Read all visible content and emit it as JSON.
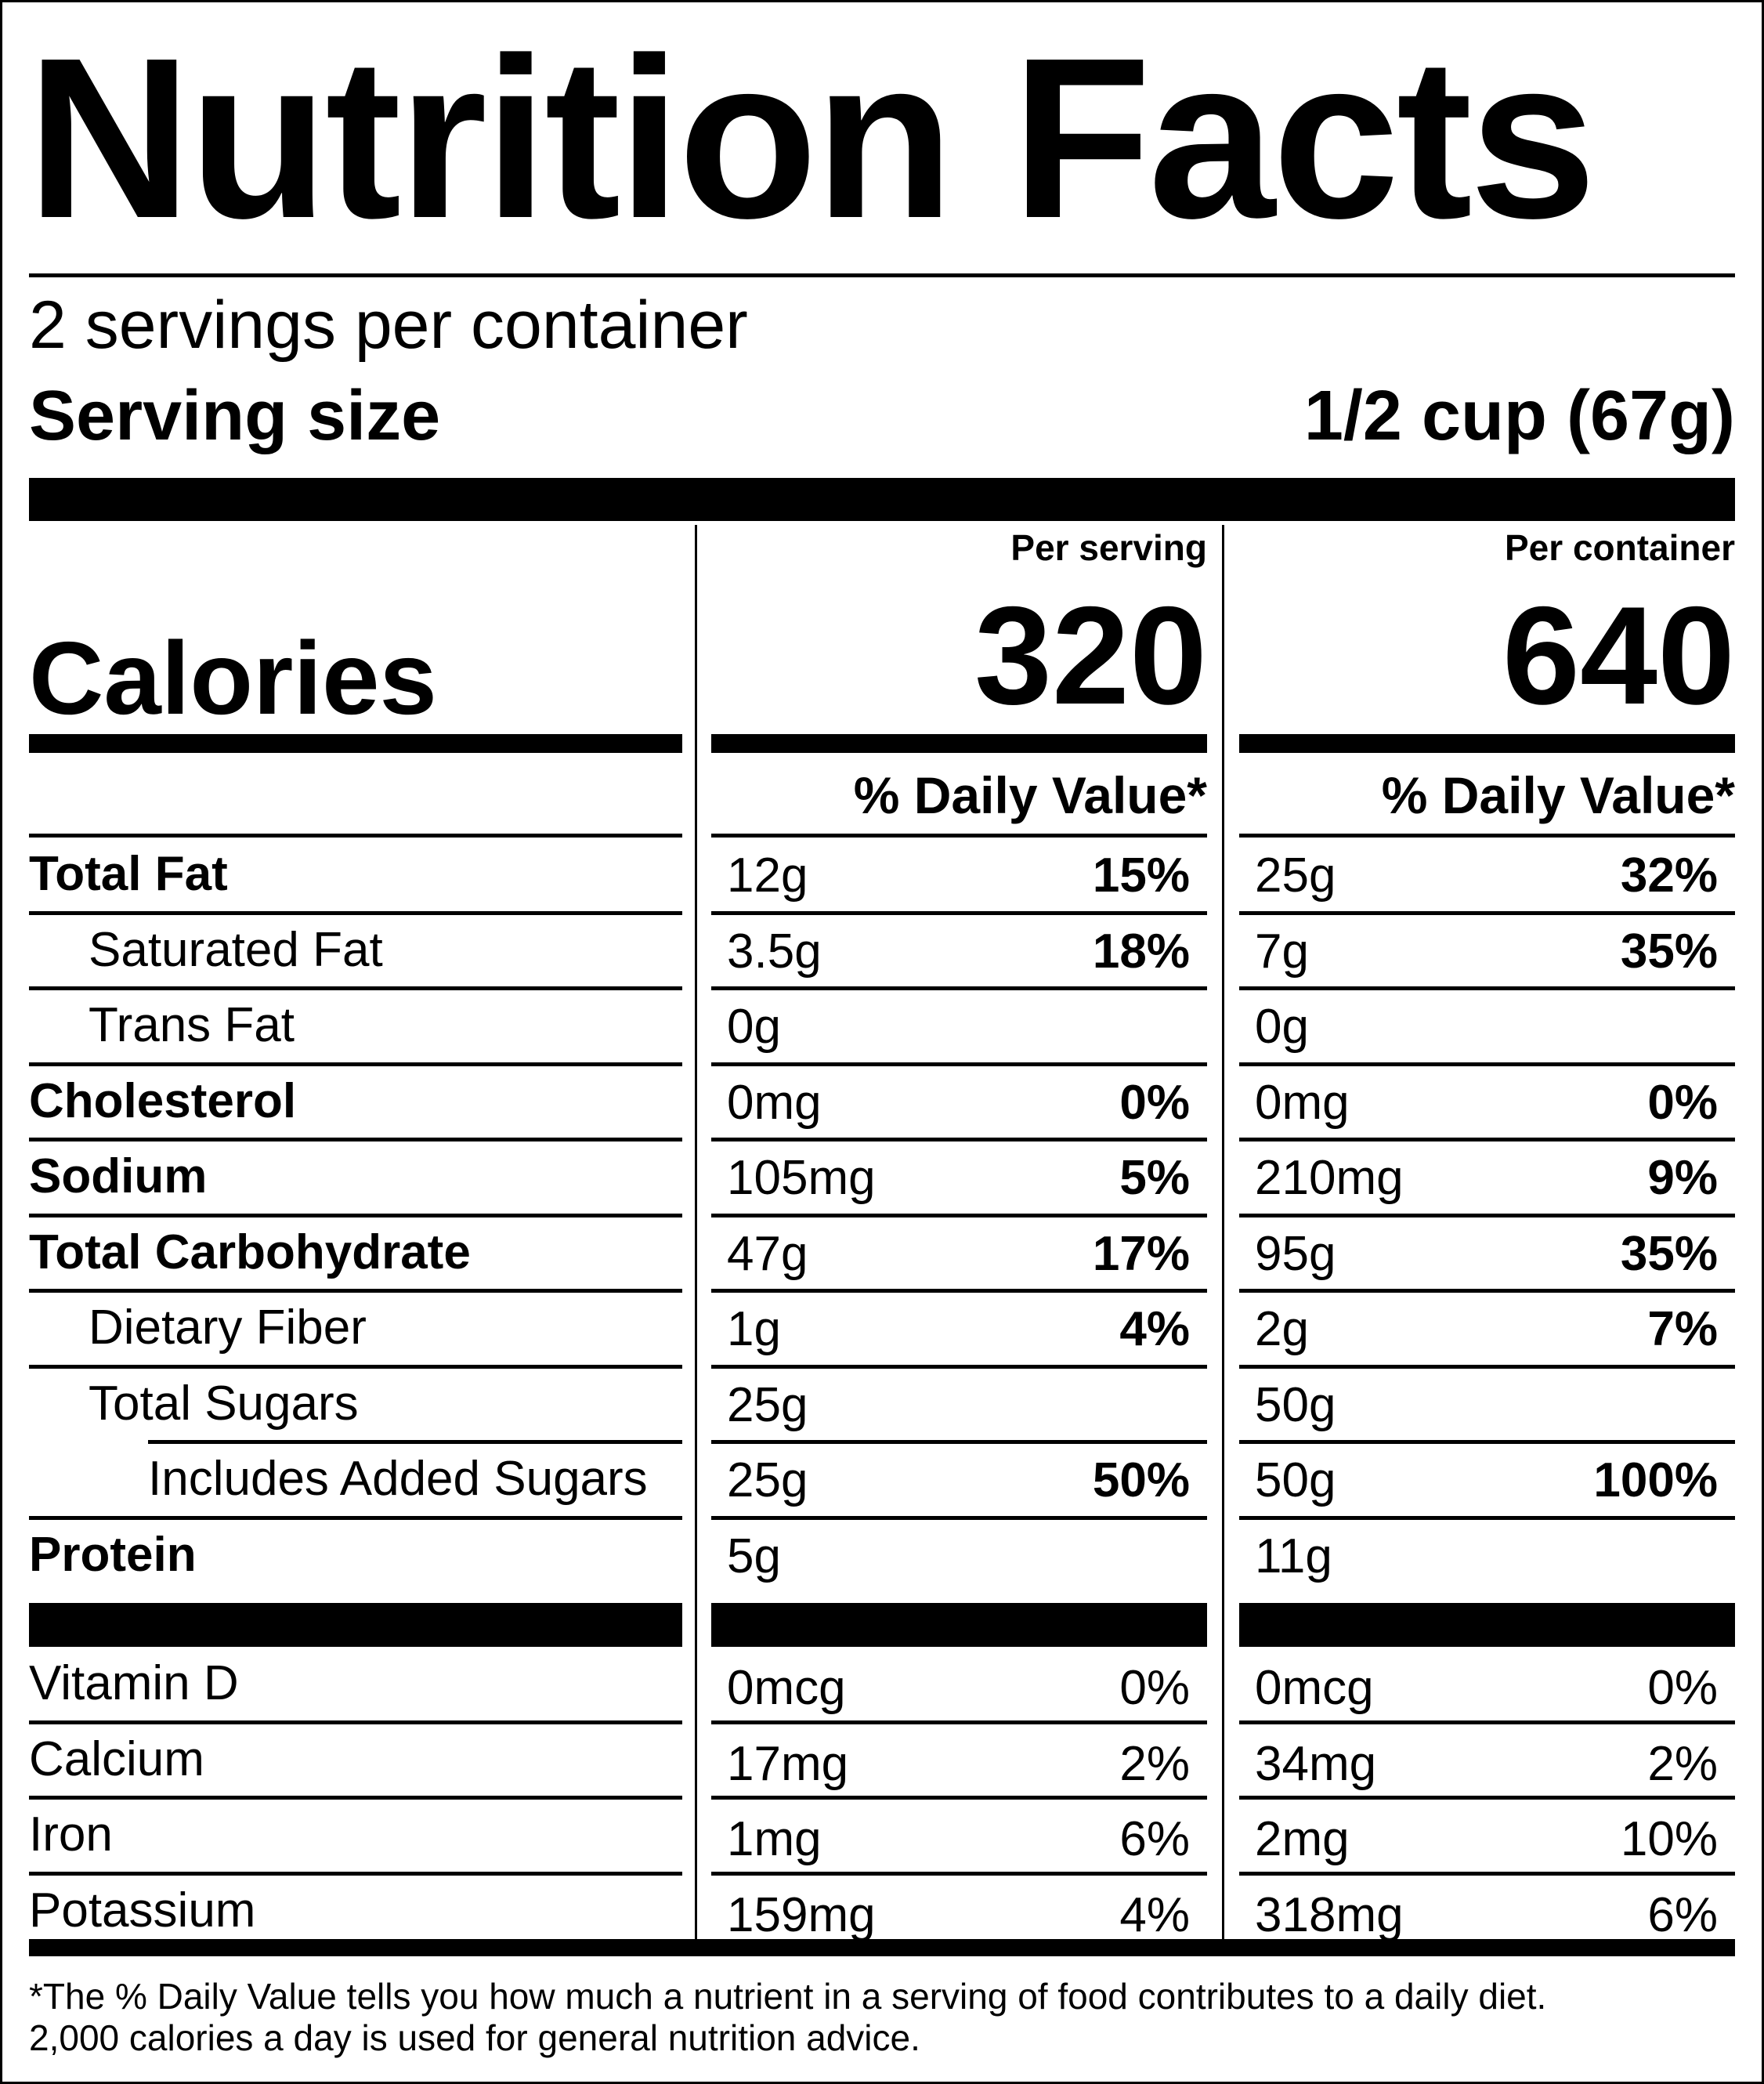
{
  "title": "Nutrition Facts",
  "servings_per_container": "2 servings per container",
  "serving_size_label": "Serving size",
  "serving_size_value": "1/2 cup (67g)",
  "calories_label": "Calories",
  "columns": [
    {
      "header": "Per serving",
      "calories": "320",
      "dv_header": "% Daily Value*"
    },
    {
      "header": "Per container",
      "calories": "640",
      "dv_header": "% Daily Value*"
    }
  ],
  "nutrients": [
    {
      "name": "Total Fat",
      "bold": true,
      "indent": 0,
      "serving": {
        "amount": "12g",
        "dv": "15%"
      },
      "container": {
        "amount": "25g",
        "dv": "32%"
      }
    },
    {
      "name": "Saturated Fat",
      "bold": false,
      "indent": 1,
      "serving": {
        "amount": "3.5g",
        "dv": "18%"
      },
      "container": {
        "amount": "7g",
        "dv": "35%"
      }
    },
    {
      "name": "Trans Fat",
      "bold": false,
      "indent": 1,
      "serving": {
        "amount": "0g",
        "dv": ""
      },
      "container": {
        "amount": "0g",
        "dv": ""
      }
    },
    {
      "name": "Cholesterol",
      "bold": true,
      "indent": 0,
      "serving": {
        "amount": "0mg",
        "dv": "0%"
      },
      "container": {
        "amount": "0mg",
        "dv": "0%"
      }
    },
    {
      "name": "Sodium",
      "bold": true,
      "indent": 0,
      "serving": {
        "amount": "105mg",
        "dv": "5%"
      },
      "container": {
        "amount": "210mg",
        "dv": "9%"
      }
    },
    {
      "name": "Total Carbohydrate",
      "bold": true,
      "indent": 0,
      "serving": {
        "amount": "47g",
        "dv": "17%"
      },
      "container": {
        "amount": "95g",
        "dv": "35%"
      }
    },
    {
      "name": "Dietary Fiber",
      "bold": false,
      "indent": 1,
      "serving": {
        "amount": "1g",
        "dv": "4%"
      },
      "container": {
        "amount": "2g",
        "dv": "7%"
      }
    },
    {
      "name": "Total Sugars",
      "bold": false,
      "indent": 1,
      "serving": {
        "amount": "25g",
        "dv": ""
      },
      "container": {
        "amount": "50g",
        "dv": ""
      }
    },
    {
      "name": "Includes Added Sugars",
      "bold": false,
      "indent": 2,
      "serving": {
        "amount": "25g",
        "dv": "50%"
      },
      "container": {
        "amount": "50g",
        "dv": "100%"
      }
    },
    {
      "name": "Protein",
      "bold": true,
      "indent": 0,
      "serving": {
        "amount": "5g",
        "dv": ""
      },
      "container": {
        "amount": "11g",
        "dv": ""
      }
    }
  ],
  "vitamins": [
    {
      "name": "Vitamin D",
      "serving": {
        "amount": "0mcg",
        "dv": "0%"
      },
      "container": {
        "amount": "0mcg",
        "dv": "0%"
      }
    },
    {
      "name": "Calcium",
      "serving": {
        "amount": "17mg",
        "dv": "2%"
      },
      "container": {
        "amount": "34mg",
        "dv": "2%"
      }
    },
    {
      "name": "Iron",
      "serving": {
        "amount": "1mg",
        "dv": "6%"
      },
      "container": {
        "amount": "2mg",
        "dv": "10%"
      }
    },
    {
      "name": "Potassium",
      "serving": {
        "amount": "159mg",
        "dv": "4%"
      },
      "container": {
        "amount": "318mg",
        "dv": "6%"
      }
    }
  ],
  "footnote": [
    "*The % Daily Value tells you how much a nutrient in a serving of food contributes to a daily diet.",
    "2,000 calories a day is used for general nutrition advice."
  ]
}
